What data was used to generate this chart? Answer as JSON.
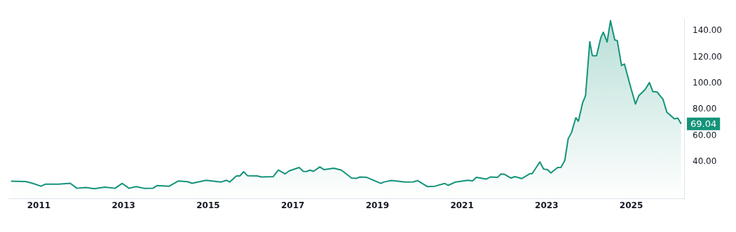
{
  "chart_data": {
    "type": "area",
    "marker": "none",
    "grid": false,
    "legend": false,
    "x": [
      2010.34,
      2010.69,
      2010.85,
      2011.05,
      2011.16,
      2011.46,
      2011.74,
      2011.9,
      2012.11,
      2012.31,
      2012.56,
      2012.8,
      2012.97,
      2013.13,
      2013.3,
      2013.48,
      2013.7,
      2013.8,
      2014.08,
      2014.3,
      2014.52,
      2014.62,
      2014.95,
      2015.31,
      2015.43,
      2015.51,
      2015.67,
      2015.75,
      2015.84,
      2015.93,
      2016.16,
      2016.26,
      2016.54,
      2016.66,
      2016.82,
      2016.92,
      2017.15,
      2017.25,
      2017.33,
      2017.41,
      2017.49,
      2017.64,
      2017.74,
      2017.97,
      2018.15,
      2018.39,
      2018.51,
      2018.59,
      2018.75,
      2019.08,
      2019.16,
      2019.33,
      2019.66,
      2019.85,
      2019.95,
      2020.18,
      2020.36,
      2020.59,
      2020.67,
      2020.85,
      2021.13,
      2021.25,
      2021.34,
      2021.57,
      2021.67,
      2021.84,
      2021.92,
      2022.0,
      2022.16,
      2022.25,
      2022.41,
      2022.61,
      2022.66,
      2022.84,
      2022.93,
      2023.02,
      2023.1,
      2023.26,
      2023.34,
      2023.43,
      2023.51,
      2023.59,
      2023.69,
      2023.75,
      2023.85,
      2023.92,
      2024.02,
      2024.08,
      2024.18,
      2024.28,
      2024.34,
      2024.43,
      2024.51,
      2024.61,
      2024.67,
      2024.77,
      2024.84,
      2024.98,
      2025.1,
      2025.18,
      2025.33,
      2025.43,
      2025.51,
      2025.61,
      2025.75,
      2025.84,
      2026.02,
      2026.1,
      2026.18
    ],
    "series": [
      {
        "color": "#14937a",
        "values": [
          25.4,
          25.1,
          23.8,
          21.6,
          23.2,
          23.2,
          23.8,
          20.0,
          20.6,
          19.7,
          20.9,
          20.0,
          23.7,
          20.0,
          21.3,
          20.0,
          20.1,
          22.1,
          21.6,
          25.6,
          25.0,
          23.8,
          26.1,
          24.8,
          26.1,
          24.8,
          29.4,
          29.4,
          32.6,
          29.6,
          29.4,
          28.6,
          28.9,
          33.9,
          31.0,
          33.3,
          35.8,
          32.9,
          32.8,
          33.8,
          32.9,
          36.3,
          34.2,
          35.3,
          33.8,
          27.8,
          27.6,
          28.6,
          28.3,
          23.7,
          24.8,
          25.9,
          24.8,
          24.9,
          25.9,
          21.3,
          21.6,
          23.7,
          22.2,
          24.8,
          26.1,
          25.7,
          28.3,
          27.0,
          28.6,
          28.3,
          30.9,
          30.7,
          27.8,
          28.9,
          27.4,
          31.2,
          31.2,
          40.1,
          34.6,
          34.2,
          31.7,
          35.8,
          36.0,
          41.3,
          57.8,
          62.6,
          73.8,
          71.1,
          85.0,
          90.6,
          131.8,
          121.1,
          121.1,
          134.7,
          139.0,
          131.5,
          147.8,
          133.1,
          132.6,
          113.6,
          114.7,
          97.8,
          84.2,
          90.6,
          95.4,
          100.6,
          93.7,
          93.4,
          87.9,
          78.1,
          73.0,
          73.5,
          69.04
        ]
      }
    ],
    "xlim": [
      2010.28,
      2026.25
    ],
    "xticks": [
      2011,
      2013,
      2015,
      2017,
      2019,
      2021,
      2023,
      2025
    ],
    "ylim": [
      12,
      149
    ],
    "yticks": [
      {
        "value": 40,
        "label": "40.00"
      },
      {
        "value": 60,
        "label": "60.00"
      },
      {
        "value": 80,
        "label": "80.00"
      },
      {
        "value": 100,
        "label": "100.00"
      },
      {
        "value": 120,
        "label": "120.00"
      },
      {
        "value": 140,
        "label": "140.00"
      }
    ],
    "annotations": [
      "69.04"
    ]
  }
}
